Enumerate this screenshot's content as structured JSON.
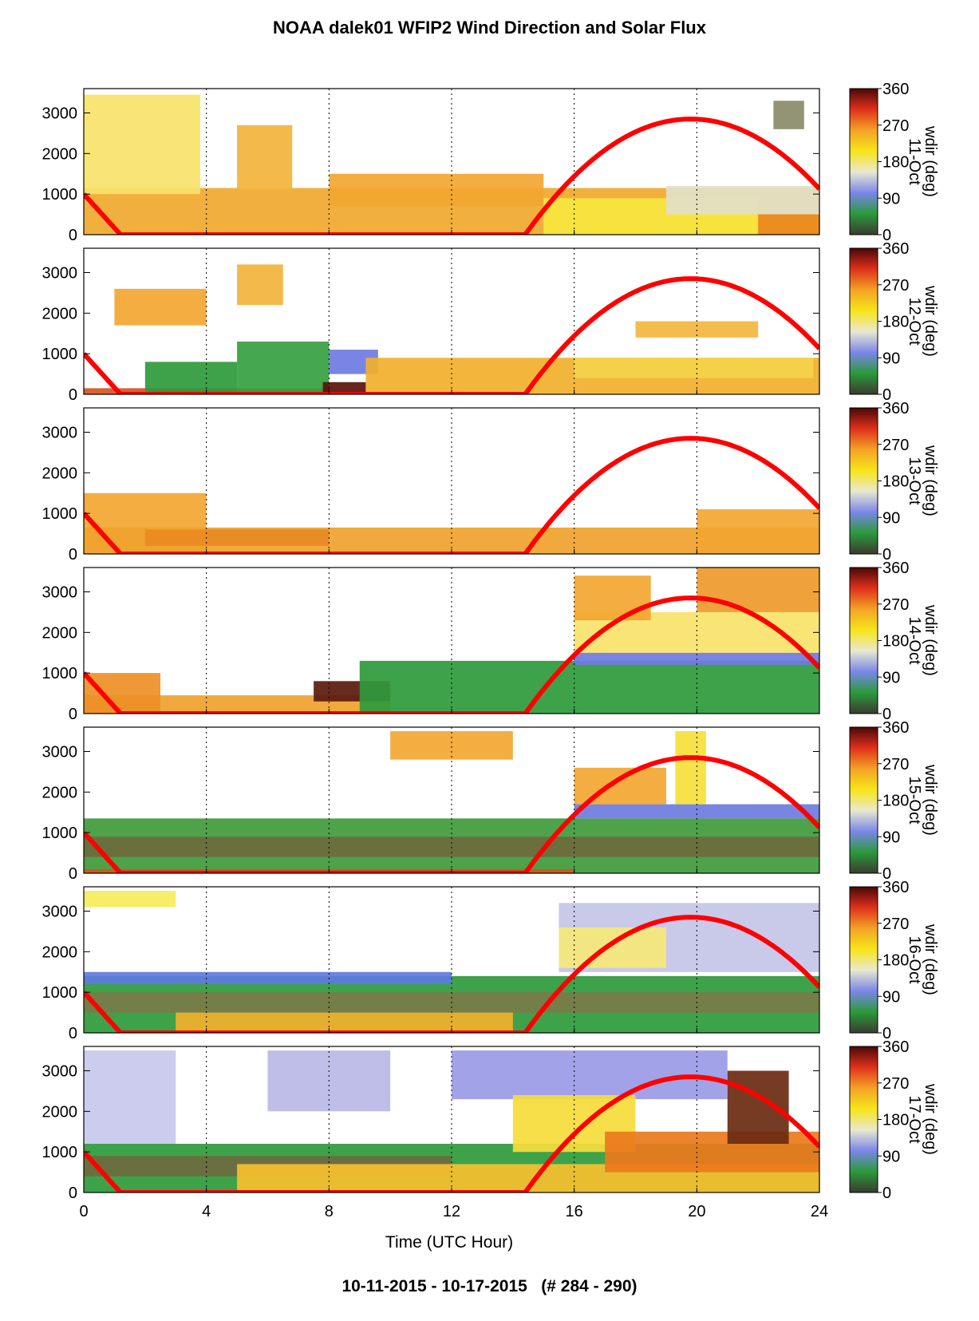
{
  "title": "NOAA dalek01 WFIP2 Wind Direction and Solar Flux",
  "footer": "10-11-2015 - 10-17-2015   (# 284 - 290)",
  "chart_data": {
    "type": "heatmap",
    "title": "NOAA dalek01 WFIP2 Wind Direction and Solar Flux",
    "xlabel": "Time (UTC Hour)",
    "ylabel": "",
    "xlim": [
      0,
      24
    ],
    "ylim": [
      0,
      3600
    ],
    "xticks": [
      0,
      4,
      8,
      12,
      16,
      20,
      24
    ],
    "yticks": [
      0,
      1000,
      2000,
      3000
    ],
    "grid": "vertical dotted lines at 4-hour intervals",
    "colorbar": {
      "label": "wdir (deg)",
      "ticks": [
        0,
        90,
        180,
        270,
        360
      ],
      "colors": [
        "#3d3a30",
        "#2a9a3a",
        "#7a86e8",
        "#e8e8d0",
        "#f6e51a",
        "#f3a325",
        "#e0301a",
        "#4a0808"
      ]
    },
    "solar_flux": {
      "color": "#ff0000",
      "rise_hour": 14.4,
      "peak_hour": 19.8,
      "peak_value": 2850,
      "value_at_0": 1000,
      "set_hour": 1.2,
      "value_at_24": 1150
    },
    "panels": [
      {
        "date": "11-Oct",
        "regions": [
          {
            "t0": 0,
            "t1": 24,
            "z0": 0,
            "z1": 1150,
            "color": "#f0a92e"
          },
          {
            "t0": 0,
            "t1": 3.8,
            "z0": 1000,
            "z1": 3450,
            "color": "#f7e36a"
          },
          {
            "t0": 5,
            "t1": 6.8,
            "z0": 1100,
            "z1": 2700,
            "color": "#f2b33c"
          },
          {
            "t0": 8,
            "t1": 15,
            "z0": 700,
            "z1": 1500,
            "color": "#f2a630"
          },
          {
            "t0": 15,
            "t1": 22,
            "z0": 0,
            "z1": 900,
            "color": "#f8e63d"
          },
          {
            "t0": 19,
            "t1": 24,
            "z0": 500,
            "z1": 1200,
            "color": "#e2e0c8"
          },
          {
            "t0": 22,
            "t1": 24,
            "z0": 0,
            "z1": 500,
            "color": "#ea8a1c"
          },
          {
            "t0": 22.5,
            "t1": 23.5,
            "z0": 2600,
            "z1": 3300,
            "color": "#8a8a6a"
          }
        ]
      },
      {
        "date": "12-Oct",
        "regions": [
          {
            "t0": 0,
            "t1": 8,
            "z0": 0,
            "z1": 150,
            "color": "#d8541e"
          },
          {
            "t0": 1,
            "t1": 4,
            "z0": 1700,
            "z1": 2600,
            "color": "#f2a630"
          },
          {
            "t0": 2,
            "t1": 5,
            "z0": 0,
            "z1": 800,
            "color": "#2e9a3c"
          },
          {
            "t0": 5,
            "t1": 8,
            "z0": 0,
            "z1": 1300,
            "color": "#35a040"
          },
          {
            "t0": 8,
            "t1": 9.6,
            "z0": 500,
            "z1": 1100,
            "color": "#6d7be0"
          },
          {
            "t0": 7.8,
            "t1": 9.2,
            "z0": 0,
            "z1": 300,
            "color": "#5a1208"
          },
          {
            "t0": 9.2,
            "t1": 24,
            "z0": 0,
            "z1": 900,
            "color": "#f2b02c"
          },
          {
            "t0": 16,
            "t1": 23.8,
            "z0": 400,
            "z1": 900,
            "color": "#f5d44a"
          },
          {
            "t0": 18,
            "t1": 22,
            "z0": 1400,
            "z1": 1800,
            "color": "#f3b63e"
          },
          {
            "t0": 5,
            "t1": 6.5,
            "z0": 2200,
            "z1": 3200,
            "color": "#f2b33c"
          }
        ]
      },
      {
        "date": "13-Oct",
        "regions": [
          {
            "t0": 0,
            "t1": 4,
            "z0": 0,
            "z1": 1500,
            "color": "#f2a630"
          },
          {
            "t0": 0,
            "t1": 24,
            "z0": 0,
            "z1": 650,
            "color": "#f0a22c"
          },
          {
            "t0": 20,
            "t1": 24,
            "z0": 0,
            "z1": 1100,
            "color": "#f2a630"
          },
          {
            "t0": 2,
            "t1": 8,
            "z0": 200,
            "z1": 600,
            "color": "#e98a22"
          }
        ]
      },
      {
        "date": "14-Oct",
        "regions": [
          {
            "t0": 0,
            "t1": 10,
            "z0": 0,
            "z1": 450,
            "color": "#f0a22c"
          },
          {
            "t0": 0,
            "t1": 2.5,
            "z0": 0,
            "z1": 1000,
            "color": "#ee8f26"
          },
          {
            "t0": 7.5,
            "t1": 10,
            "z0": 300,
            "z1": 800,
            "color": "#5a1a0c"
          },
          {
            "t0": 9,
            "t1": 24,
            "z0": 0,
            "z1": 1300,
            "color": "#2e9a3c"
          },
          {
            "t0": 16,
            "t1": 24,
            "z0": 1200,
            "z1": 1500,
            "color": "#6d7be0"
          },
          {
            "t0": 16,
            "t1": 24,
            "z0": 1500,
            "z1": 2500,
            "color": "#f7e36a"
          },
          {
            "t0": 16,
            "t1": 18.5,
            "z0": 2300,
            "z1": 3400,
            "color": "#f2a630"
          },
          {
            "t0": 20,
            "t1": 24,
            "z0": 2500,
            "z1": 3600,
            "color": "#ee9a2a"
          }
        ]
      },
      {
        "date": "15-Oct",
        "regions": [
          {
            "t0": 0,
            "t1": 24,
            "z0": 0,
            "z1": 1350,
            "color": "#3f9a3a"
          },
          {
            "t0": 0,
            "t1": 24,
            "z0": 400,
            "z1": 900,
            "color": "#6e6a3e"
          },
          {
            "t0": 16,
            "t1": 24,
            "z0": 1350,
            "z1": 1700,
            "color": "#6d7be0"
          },
          {
            "t0": 16,
            "t1": 19,
            "z0": 1700,
            "z1": 2600,
            "color": "#f2a630"
          },
          {
            "t0": 10,
            "t1": 14,
            "z0": 2800,
            "z1": 3500,
            "color": "#f2a630"
          },
          {
            "t0": 19.3,
            "t1": 20.3,
            "z0": 1700,
            "z1": 3500,
            "color": "#f6e03a"
          },
          {
            "t0": 0,
            "t1": 16,
            "z0": 0,
            "z1": 100,
            "color": "#d8541e"
          }
        ]
      },
      {
        "date": "16-Oct",
        "regions": [
          {
            "t0": 0,
            "t1": 24,
            "z0": 0,
            "z1": 1400,
            "color": "#2e9a3c"
          },
          {
            "t0": 0,
            "t1": 24,
            "z0": 500,
            "z1": 1000,
            "color": "#7a7a48"
          },
          {
            "t0": 0,
            "t1": 12,
            "z0": 1200,
            "z1": 1500,
            "color": "#5f7ae0"
          },
          {
            "t0": 3,
            "t1": 14,
            "z0": 0,
            "z1": 500,
            "color": "#f2b02c"
          },
          {
            "t0": 15.5,
            "t1": 24,
            "z0": 1500,
            "z1": 3200,
            "color": "#c4c4e8"
          },
          {
            "t0": 15.5,
            "t1": 19,
            "z0": 1600,
            "z1": 2600,
            "color": "#f5e878"
          },
          {
            "t0": 0,
            "t1": 3,
            "z0": 3100,
            "z1": 3500,
            "color": "#f7ec5a"
          }
        ]
      },
      {
        "date": "17-Oct",
        "regions": [
          {
            "t0": 0,
            "t1": 24,
            "z0": 0,
            "z1": 1200,
            "color": "#2e9a3c"
          },
          {
            "t0": 0,
            "t1": 12,
            "z0": 400,
            "z1": 900,
            "color": "#6e6a3e"
          },
          {
            "t0": 5,
            "t1": 24,
            "z0": 0,
            "z1": 700,
            "color": "#f6c02e"
          },
          {
            "t0": 0,
            "t1": 3,
            "z0": 1200,
            "z1": 3500,
            "color": "#c8c8ee"
          },
          {
            "t0": 6,
            "t1": 10,
            "z0": 2000,
            "z1": 3500,
            "color": "#b8b8e6"
          },
          {
            "t0": 12,
            "t1": 21,
            "z0": 2300,
            "z1": 3500,
            "color": "#9a9ae6"
          },
          {
            "t0": 14,
            "t1": 18,
            "z0": 1000,
            "z1": 2400,
            "color": "#f5dc3a"
          },
          {
            "t0": 17,
            "t1": 24,
            "z0": 500,
            "z1": 1500,
            "color": "#ea7a1c"
          },
          {
            "t0": 21,
            "t1": 23,
            "z0": 1200,
            "z1": 3000,
            "color": "#6a2a10"
          }
        ]
      }
    ]
  }
}
